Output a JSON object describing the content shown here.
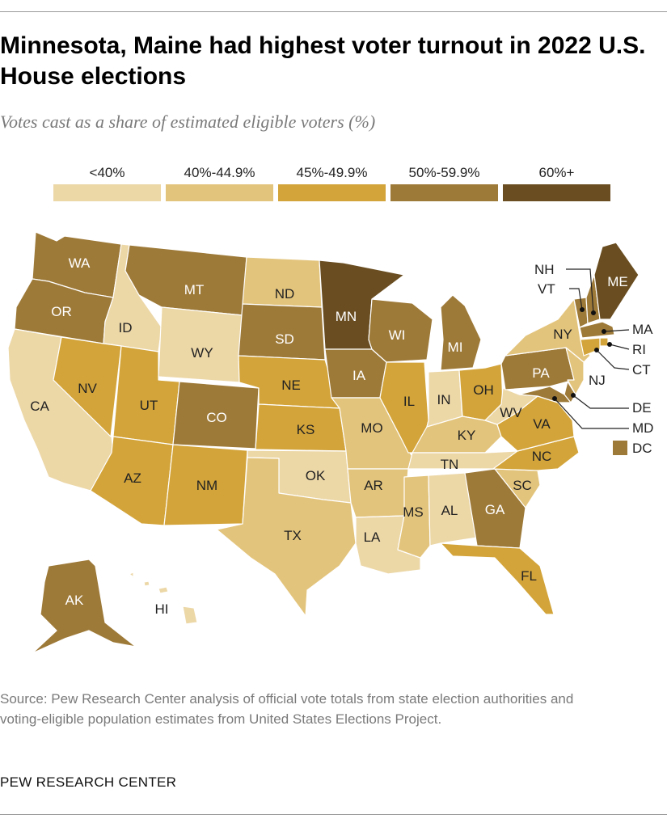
{
  "title": "Minnesota, Maine had highest voter turnout in 2022 U.S. House elections",
  "subtitle": "Votes cast as a share of estimated eligible voters (%)",
  "legend": [
    {
      "label": "<40%",
      "color": "#ecd7a7"
    },
    {
      "label": "40%-44.9%",
      "color": "#e3c47c"
    },
    {
      "label": "45%-49.9%",
      "color": "#d3a43a"
    },
    {
      "label": "50%-59.9%",
      "color": "#9e7a39"
    },
    {
      "label": "60%+",
      "color": "#6a4e22"
    }
  ],
  "source": "Source: Pew Research Center analysis of official vote totals from state election authorities and voting-eligible population estimates from United States Elections Project.",
  "brand": "PEW RESEARCH CENTER",
  "states": {
    "WA": {
      "label": "WA",
      "bin": 3
    },
    "OR": {
      "label": "OR",
      "bin": 3
    },
    "CA": {
      "label": "CA",
      "bin": 0
    },
    "ID": {
      "label": "ID",
      "bin": 0
    },
    "NV": {
      "label": "NV",
      "bin": 2
    },
    "UT": {
      "label": "UT",
      "bin": 2
    },
    "AZ": {
      "label": "AZ",
      "bin": 2
    },
    "MT": {
      "label": "MT",
      "bin": 3
    },
    "WY": {
      "label": "WY",
      "bin": 0
    },
    "CO": {
      "label": "CO",
      "bin": 3
    },
    "NM": {
      "label": "NM",
      "bin": 2
    },
    "ND": {
      "label": "ND",
      "bin": 1
    },
    "SD": {
      "label": "SD",
      "bin": 3
    },
    "NE": {
      "label": "NE",
      "bin": 2
    },
    "KS": {
      "label": "KS",
      "bin": 2
    },
    "OK": {
      "label": "OK",
      "bin": 0
    },
    "TX": {
      "label": "TX",
      "bin": 1
    },
    "MN": {
      "label": "MN",
      "bin": 4
    },
    "IA": {
      "label": "IA",
      "bin": 3
    },
    "MO": {
      "label": "MO",
      "bin": 1
    },
    "AR": {
      "label": "AR",
      "bin": 1
    },
    "LA": {
      "label": "LA",
      "bin": 0
    },
    "WI": {
      "label": "WI",
      "bin": 3
    },
    "IL": {
      "label": "IL",
      "bin": 2
    },
    "MI": {
      "label": "MI",
      "bin": 3
    },
    "IN": {
      "label": "IN",
      "bin": 0
    },
    "OH": {
      "label": "OH",
      "bin": 2
    },
    "KY": {
      "label": "KY",
      "bin": 1
    },
    "TN": {
      "label": "TN",
      "bin": 0
    },
    "MS": {
      "label": "MS",
      "bin": 1
    },
    "AL": {
      "label": "AL",
      "bin": 0
    },
    "GA": {
      "label": "GA",
      "bin": 3
    },
    "FL": {
      "label": "FL",
      "bin": 2
    },
    "SC": {
      "label": "SC",
      "bin": 1
    },
    "NC": {
      "label": "NC",
      "bin": 2
    },
    "VA": {
      "label": "VA",
      "bin": 2
    },
    "WV": {
      "label": "WV",
      "bin": 0
    },
    "PA": {
      "label": "PA",
      "bin": 3
    },
    "NY": {
      "label": "NY",
      "bin": 1
    },
    "VT": {
      "label": "VT",
      "bin": 3
    },
    "NH": {
      "label": "NH",
      "bin": 3
    },
    "ME": {
      "label": "ME",
      "bin": 4
    },
    "MA": {
      "label": "MA",
      "bin": 3
    },
    "RI": {
      "label": "RI",
      "bin": 2
    },
    "CT": {
      "label": "CT",
      "bin": 2
    },
    "NJ": {
      "label": "NJ",
      "bin": 1
    },
    "DE": {
      "label": "DE",
      "bin": 3
    },
    "MD": {
      "label": "MD",
      "bin": 3
    },
    "DC": {
      "label": "DC",
      "bin": 3
    },
    "AK": {
      "label": "AK",
      "bin": 3
    },
    "HI": {
      "label": "HI",
      "bin": 0
    }
  }
}
